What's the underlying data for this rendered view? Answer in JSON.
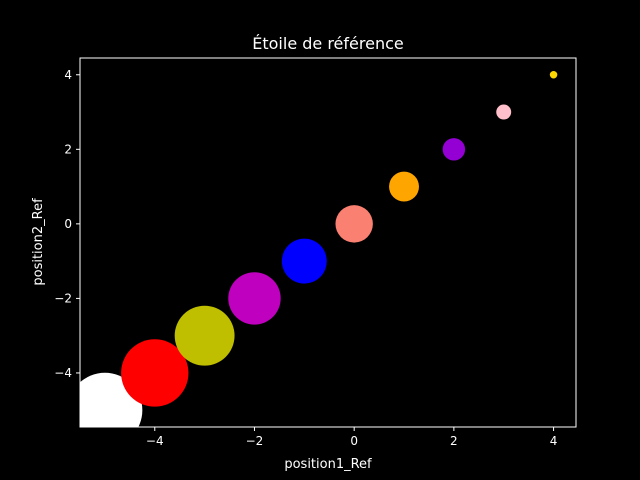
{
  "chart_data": {
    "type": "scatter",
    "title": "Étoile de référence",
    "xlabel": "position1_Ref",
    "ylabel": "position2_Ref",
    "xlim": [
      -5.5,
      4.45
    ],
    "ylim": [
      -5.45,
      4.45
    ],
    "xticks": [
      -4,
      -2,
      0,
      2,
      4
    ],
    "yticks": [
      -4,
      -2,
      0,
      2,
      4
    ],
    "grid": false,
    "points": [
      {
        "x": -5,
        "y": -5,
        "size": 10,
        "color": "#ffffff"
      },
      {
        "x": -4,
        "y": -4,
        "size": 9,
        "color": "#ff0000"
      },
      {
        "x": -3,
        "y": -3,
        "size": 8,
        "color": "#bfbf00"
      },
      {
        "x": -2,
        "y": -2,
        "size": 7,
        "color": "#bf00bf"
      },
      {
        "x": -1,
        "y": -1,
        "size": 6,
        "color": "#0000ff"
      },
      {
        "x": 0,
        "y": 0,
        "size": 5,
        "color": "#fa8072"
      },
      {
        "x": 1,
        "y": 1,
        "size": 4,
        "color": "#ffa500"
      },
      {
        "x": 2,
        "y": 2,
        "size": 3,
        "color": "#9400d3"
      },
      {
        "x": 3,
        "y": 3,
        "size": 2,
        "color": "#ffc0cb"
      },
      {
        "x": 4,
        "y": 4,
        "size": 1,
        "color": "#ffd700"
      }
    ]
  }
}
